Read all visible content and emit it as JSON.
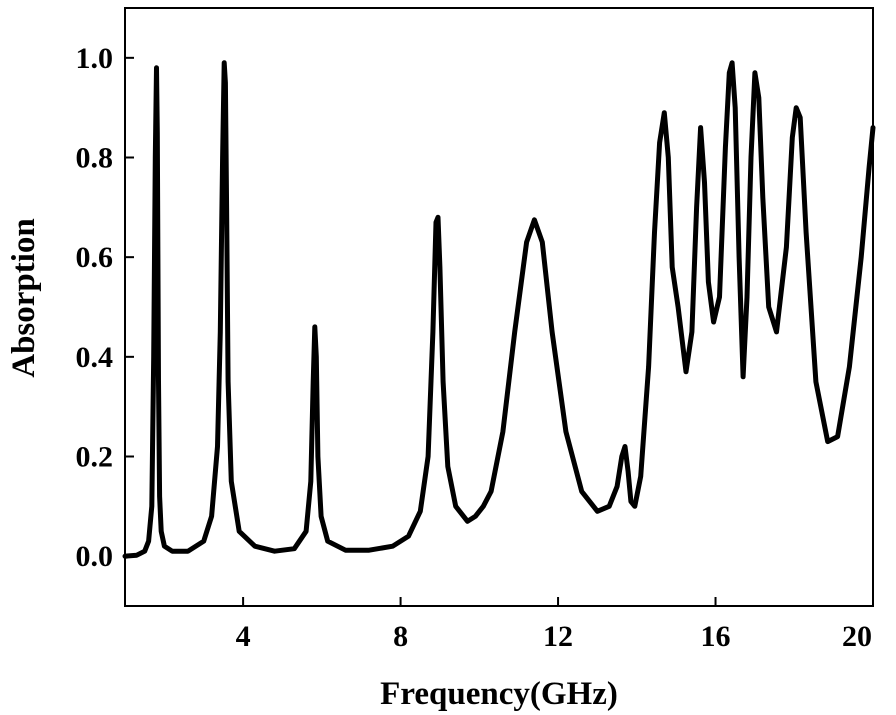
{
  "chart_data": {
    "type": "line",
    "title": "",
    "xlabel": "Frequency(GHz)",
    "ylabel": "Absorption",
    "xlim": [
      1,
      20
    ],
    "ylim": [
      -0.1,
      1.1
    ],
    "xticks": [
      4,
      8,
      12,
      16,
      20
    ],
    "xtick_labels": [
      "4",
      "8",
      "12",
      "16",
      "20"
    ],
    "yticks": [
      0.0,
      0.2,
      0.4,
      0.6,
      0.8,
      1.0
    ],
    "ytick_labels": [
      "0.0",
      "0.2",
      "0.4",
      "0.6",
      "0.8",
      "1.0"
    ],
    "grid": false,
    "legend": "none",
    "line_color": "#000000",
    "series": [
      {
        "x": [
          1.0,
          1.3,
          1.5,
          1.6,
          1.68,
          1.73,
          1.77,
          1.8,
          1.82,
          1.85,
          1.88,
          1.92,
          2.0,
          2.2,
          2.6,
          3.0,
          3.2,
          3.35,
          3.42,
          3.48,
          3.52,
          3.55,
          3.58,
          3.62,
          3.7,
          3.9,
          4.3,
          4.8,
          5.3,
          5.6,
          5.72,
          5.78,
          5.82,
          5.86,
          5.9,
          5.98,
          6.15,
          6.6,
          7.2,
          7.8,
          8.2,
          8.5,
          8.7,
          8.82,
          8.9,
          8.95,
          9.0,
          9.08,
          9.2,
          9.4,
          9.7,
          9.9,
          10.1,
          10.3,
          10.6,
          10.9,
          11.2,
          11.4,
          11.6,
          11.85,
          12.2,
          12.6,
          13.0,
          13.3,
          13.5,
          13.62,
          13.7,
          13.78,
          13.85,
          13.95,
          14.1,
          14.3,
          14.45,
          14.58,
          14.7,
          14.8,
          14.9,
          15.05,
          15.25,
          15.4,
          15.52,
          15.62,
          15.72,
          15.82,
          15.95,
          16.1,
          16.25,
          16.35,
          16.42,
          16.5,
          16.6,
          16.7,
          16.8,
          16.9,
          17.0,
          17.1,
          17.2,
          17.35,
          17.55,
          17.8,
          17.95,
          18.05,
          18.15,
          18.3,
          18.55,
          18.85,
          19.1,
          19.4,
          19.7,
          19.9,
          20.0
        ],
        "y": [
          0.0,
          0.002,
          0.01,
          0.03,
          0.1,
          0.4,
          0.8,
          0.98,
          0.85,
          0.35,
          0.12,
          0.05,
          0.02,
          0.01,
          0.01,
          0.03,
          0.08,
          0.22,
          0.45,
          0.8,
          0.99,
          0.95,
          0.7,
          0.35,
          0.15,
          0.05,
          0.02,
          0.01,
          0.015,
          0.05,
          0.15,
          0.35,
          0.46,
          0.4,
          0.2,
          0.08,
          0.03,
          0.012,
          0.012,
          0.02,
          0.04,
          0.09,
          0.2,
          0.45,
          0.67,
          0.68,
          0.58,
          0.35,
          0.18,
          0.1,
          0.07,
          0.08,
          0.1,
          0.13,
          0.25,
          0.45,
          0.63,
          0.675,
          0.63,
          0.45,
          0.25,
          0.13,
          0.09,
          0.1,
          0.14,
          0.2,
          0.22,
          0.17,
          0.11,
          0.1,
          0.16,
          0.38,
          0.65,
          0.83,
          0.89,
          0.8,
          0.58,
          0.5,
          0.37,
          0.45,
          0.7,
          0.86,
          0.75,
          0.55,
          0.47,
          0.52,
          0.82,
          0.97,
          0.99,
          0.9,
          0.6,
          0.36,
          0.52,
          0.8,
          0.97,
          0.92,
          0.72,
          0.5,
          0.45,
          0.62,
          0.84,
          0.9,
          0.88,
          0.65,
          0.35,
          0.23,
          0.24,
          0.38,
          0.6,
          0.78,
          0.86
        ]
      }
    ]
  }
}
